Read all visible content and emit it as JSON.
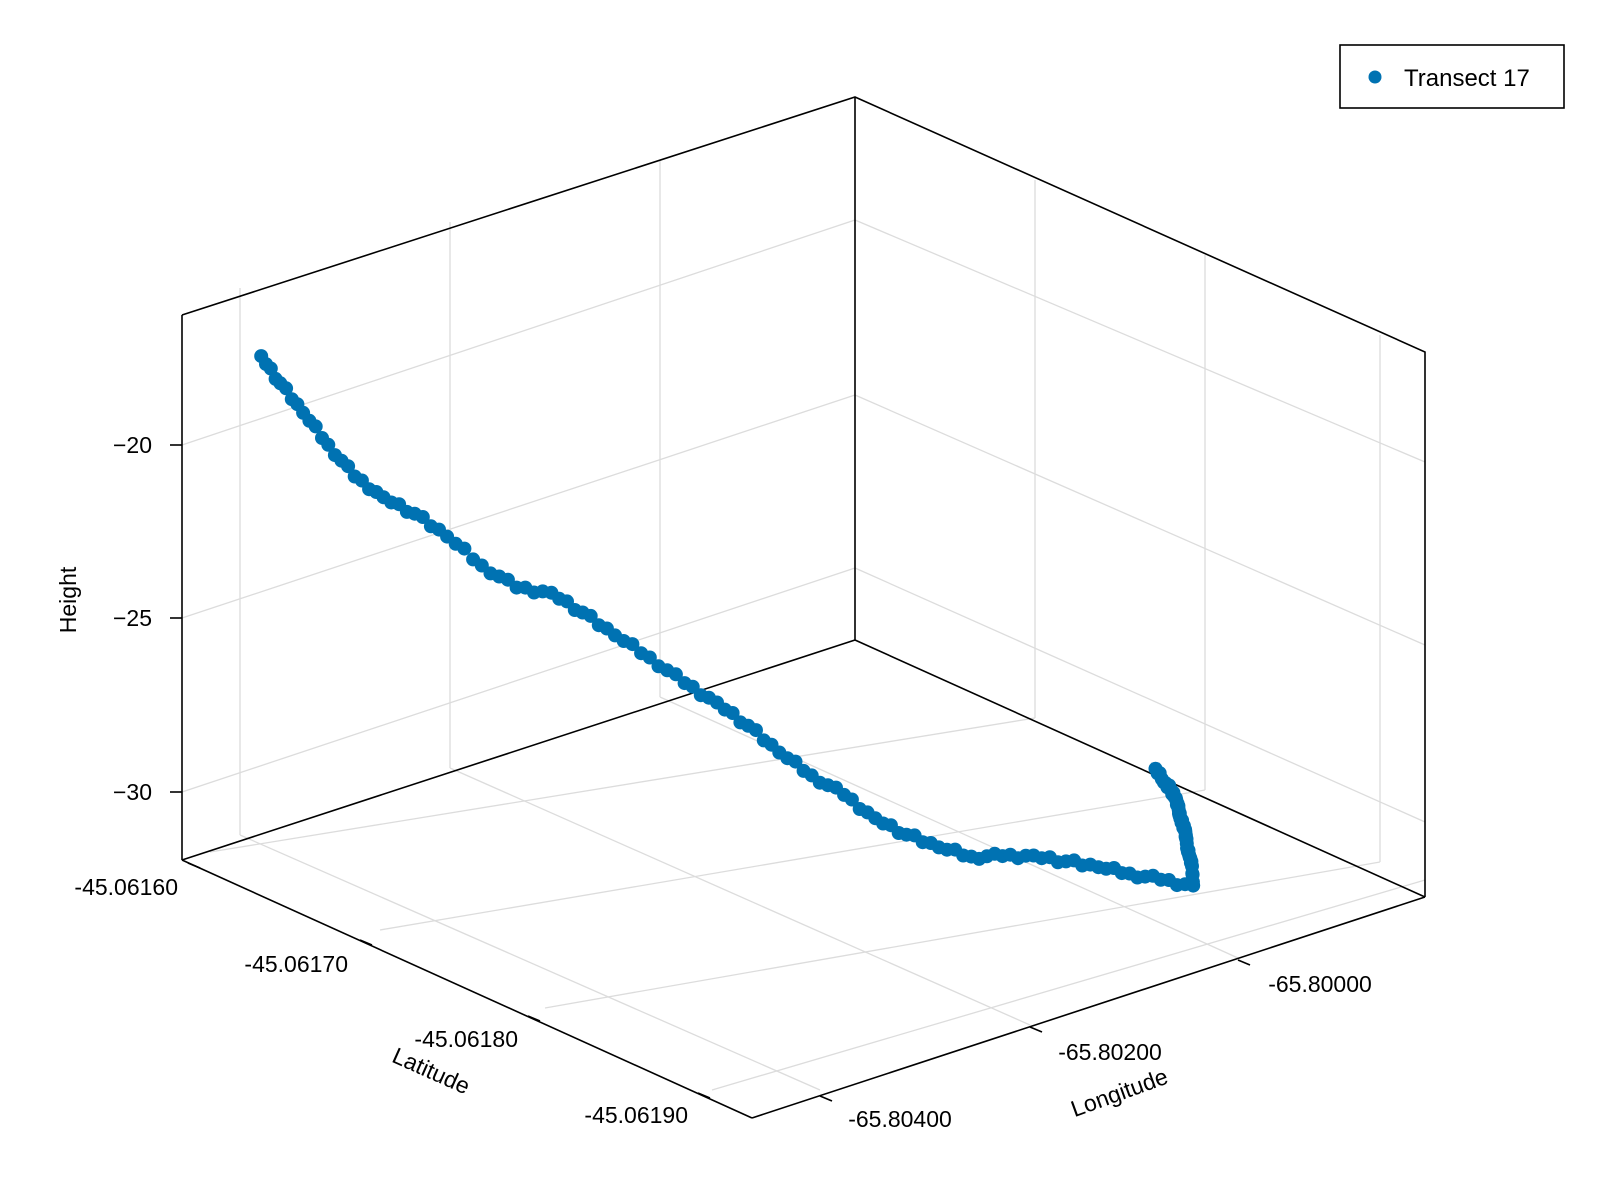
{
  "chart_data": {
    "type": "scatter",
    "projection": "3d",
    "series": [
      {
        "name": "Transect 17",
        "color": "#0072b2",
        "x": [
          -65.80432,
          -65.8043,
          -65.80425,
          -65.80418,
          -65.8041,
          -65.804,
          -65.80388,
          -65.80375,
          -65.8036,
          -65.80345,
          -65.8033,
          -65.80318,
          -65.80305,
          -65.8029,
          -65.80275,
          -65.80262,
          -65.8025,
          -65.80238,
          -65.80225,
          -65.80212,
          -65.802,
          -65.80188,
          -65.80175,
          -65.80162,
          -65.8015,
          -65.80138,
          -65.80125,
          -65.80112,
          -65.801,
          -65.80088,
          -65.80075,
          -65.80062,
          -65.8005,
          -65.80038,
          -65.80025,
          -65.80012,
          -65.8,
          -65.79988,
          -65.79975,
          -65.79962,
          -65.7995,
          -65.7994,
          -65.79932,
          -65.79925
        ],
        "y": [
          -45.0616,
          -45.06161,
          -45.06162,
          -45.06163,
          -45.06164,
          -45.06165,
          -45.06166,
          -45.06167,
          -45.06168,
          -45.06169,
          -45.0617,
          -45.06171,
          -45.06172,
          -45.06173,
          -45.06174,
          -45.06175,
          -45.06176,
          -45.06177,
          -45.06178,
          -45.06179,
          -45.0618,
          -45.06181,
          -45.06182,
          -45.06183,
          -45.06184,
          -45.06185,
          -45.06186,
          -45.06187,
          -45.06188,
          -45.06189,
          -45.0619,
          -45.06189,
          -45.06188,
          -45.06187,
          -45.06186,
          -45.06185,
          -45.06184,
          -45.06183,
          -45.06182,
          -45.06181,
          -45.0618,
          -45.06179,
          -45.06178,
          -45.06177
        ],
        "z": [
          -17.2,
          -17.8,
          -18.5,
          -19.3,
          -20.1,
          -20.6,
          -21.0,
          -21.6,
          -22.4,
          -23.0,
          -23.1,
          -23.6,
          -24.2,
          -24.8,
          -25.5,
          -26.0,
          -26.6,
          -27.3,
          -27.9,
          -28.4,
          -29.0,
          -29.4,
          -29.7,
          -29.9,
          -29.8,
          -29.7,
          -29.8,
          -29.9,
          -30.0,
          -30.1,
          -30.2,
          -30.0,
          -30.1,
          -30.2,
          -30.3,
          -30.4,
          -30.6,
          -30.8,
          -31.0,
          -31.2,
          -31.3,
          -31.4,
          -31.5,
          -31.4
        ]
      }
    ],
    "xlabel": "Longitude",
    "ylabel": "Latitude",
    "zlabel": "Height",
    "x_ticks": [
      "-65.80400",
      "-65.80200",
      "-65.80000"
    ],
    "y_ticks": [
      "-45.06160",
      "-45.06170",
      "-45.06180",
      "-45.06190"
    ],
    "z_ticks": [
      "−20",
      "−25",
      "−30"
    ],
    "xlim": [
      -65.8047,
      -65.7991
    ],
    "ylim": [
      -45.06192,
      -45.06158
    ],
    "zlim": [
      -32.0,
      -16.0
    ],
    "grid": true,
    "legend_position": "top-right",
    "marker": "circle"
  },
  "legend": {
    "entries": [
      "Transect 17"
    ]
  }
}
